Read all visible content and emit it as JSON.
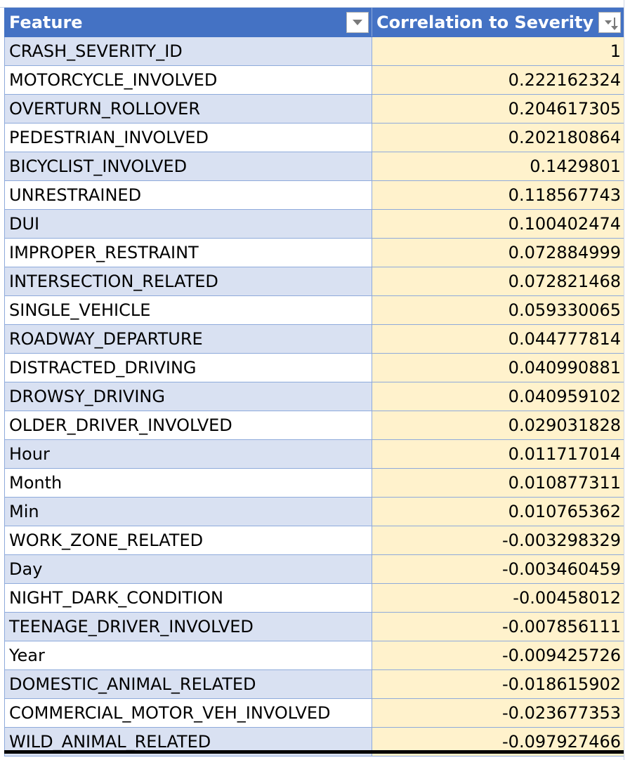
{
  "table": {
    "headers": {
      "feature": "Feature",
      "correlation": "Correlation to Severity"
    },
    "rows": [
      {
        "feature": "CRASH_SEVERITY_ID",
        "value": "1"
      },
      {
        "feature": "MOTORCYCLE_INVOLVED",
        "value": "0.222162324"
      },
      {
        "feature": "OVERTURN_ROLLOVER",
        "value": "0.204617305"
      },
      {
        "feature": "PEDESTRIAN_INVOLVED",
        "value": "0.202180864"
      },
      {
        "feature": "BICYCLIST_INVOLVED",
        "value": "0.1429801"
      },
      {
        "feature": "UNRESTRAINED",
        "value": "0.118567743"
      },
      {
        "feature": "DUI",
        "value": "0.100402474"
      },
      {
        "feature": "IMPROPER_RESTRAINT",
        "value": "0.072884999"
      },
      {
        "feature": "INTERSECTION_RELATED",
        "value": "0.072821468"
      },
      {
        "feature": "SINGLE_VEHICLE",
        "value": "0.059330065"
      },
      {
        "feature": "ROADWAY_DEPARTURE",
        "value": "0.044777814"
      },
      {
        "feature": "DISTRACTED_DRIVING",
        "value": "0.040990881"
      },
      {
        "feature": "DROWSY_DRIVING",
        "value": "0.040959102"
      },
      {
        "feature": "OLDER_DRIVER_INVOLVED",
        "value": "0.029031828"
      },
      {
        "feature": "Hour",
        "value": "0.011717014"
      },
      {
        "feature": "Month",
        "value": "0.010877311"
      },
      {
        "feature": "Min",
        "value": "0.010765362"
      },
      {
        "feature": "WORK_ZONE_RELATED",
        "value": "-0.003298329"
      },
      {
        "feature": "Day",
        "value": "-0.003460459"
      },
      {
        "feature": "NIGHT_DARK_CONDITION",
        "value": "-0.00458012"
      },
      {
        "feature": "TEENAGE_DRIVER_INVOLVED",
        "value": "-0.007856111"
      },
      {
        "feature": "Year",
        "value": "-0.009425726"
      },
      {
        "feature": "DOMESTIC_ANIMAL_RELATED",
        "value": "-0.018615902"
      },
      {
        "feature": "COMMERCIAL_MOTOR_VEH_INVOLVED",
        "value": "-0.023677353"
      },
      {
        "feature": "WILD_ANIMAL_RELATED",
        "value": "-0.097927466"
      }
    ]
  },
  "icons": {
    "feature_filter": "dropdown-arrow-icon",
    "correlation_filter": "sort-descending-icon"
  },
  "colors": {
    "header_bg": "#4472c4",
    "band_bg": "#d9e1f2",
    "value_bg": "#fff2cc",
    "border": "#8eaadb"
  }
}
